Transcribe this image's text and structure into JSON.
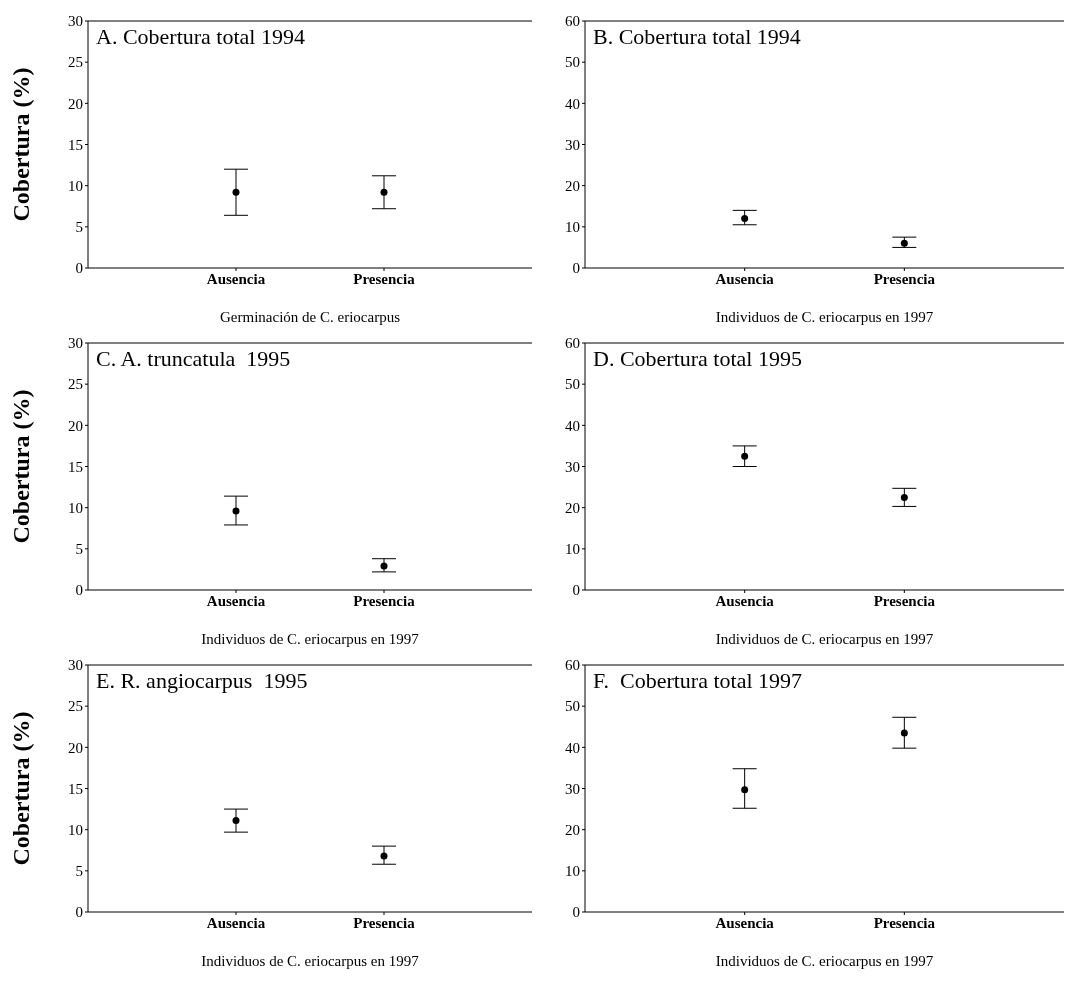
{
  "chart_data": [
    {
      "type": "scatter",
      "title": "A. Cobertura total 1994",
      "xlabel": "Germinación de C. eriocarpus",
      "ylabel": "Cobertura (%)",
      "categories": [
        "Ausencia",
        "Presencia"
      ],
      "values": [
        9.2,
        9.2
      ],
      "errors": [
        [
          6.4,
          12
        ],
        [
          7.2,
          11.2
        ]
      ],
      "color": "#000000",
      "marker": "circle",
      "ylim": [
        0,
        30
      ],
      "yticks": [
        0,
        5,
        10,
        15,
        20,
        25,
        30
      ]
    },
    {
      "type": "scatter",
      "title": "B. Cobertura total 1994",
      "xlabel": "Individuos de C. eriocarpus en 1997",
      "categories": [
        "Ausencia",
        "Presencia"
      ],
      "values": [
        12,
        6
      ],
      "errors": [
        [
          10.5,
          14
        ],
        [
          5,
          7.5
        ]
      ],
      "color": "#000000",
      "marker": "circle",
      "ylim": [
        0,
        60
      ],
      "yticks": [
        0,
        10,
        20,
        30,
        40,
        50,
        60
      ]
    },
    {
      "type": "scatter",
      "title": "C. A. truncatula  1995",
      "xlabel": "Individuos de C. eriocarpus en 1997",
      "ylabel": "Cobertura (%)",
      "categories": [
        "Ausencia",
        "Presencia"
      ],
      "values": [
        9.6,
        2.9
      ],
      "errors": [
        [
          7.9,
          11.4
        ],
        [
          2.2,
          3.8
        ]
      ],
      "color": "#000000",
      "marker": "circle",
      "ylim": [
        0,
        30
      ],
      "yticks": [
        0,
        5,
        10,
        15,
        20,
        25,
        30
      ]
    },
    {
      "type": "scatter",
      "title": "D. Cobertura total 1995",
      "xlabel": "Individuos de C. eriocarpus en 1997",
      "categories": [
        "Ausencia",
        "Presencia"
      ],
      "values": [
        32.5,
        22.5
      ],
      "errors": [
        [
          30,
          35
        ],
        [
          20.3,
          24.7
        ]
      ],
      "color": "#000000",
      "marker": "circle",
      "ylim": [
        0,
        60
      ],
      "yticks": [
        0,
        10,
        20,
        30,
        40,
        50,
        60
      ]
    },
    {
      "type": "scatter",
      "title": "E. R. angiocarpus  1995",
      "xlabel": "Individuos de C. eriocarpus en 1997",
      "ylabel": "Cobertura (%)",
      "categories": [
        "Ausencia",
        "Presencia"
      ],
      "values": [
        11.1,
        6.8
      ],
      "errors": [
        [
          9.7,
          12.5
        ],
        [
          5.8,
          8
        ]
      ],
      "color": "#000000",
      "marker": "circle",
      "ylim": [
        0,
        30
      ],
      "yticks": [
        0,
        5,
        10,
        15,
        20,
        25,
        30
      ]
    },
    {
      "type": "scatter",
      "title": "F.  Cobertura total 1997",
      "xlabel": "Individuos de C. eriocarpus en 1997",
      "categories": [
        "Ausencia",
        "Presencia"
      ],
      "values": [
        29.7,
        43.5
      ],
      "errors": [
        [
          25.2,
          34.8
        ],
        [
          39.8,
          47.3
        ]
      ],
      "color": "#000000",
      "marker": "circle",
      "ylim": [
        0,
        60
      ],
      "yticks": [
        0,
        10,
        20,
        30,
        40,
        50,
        60
      ]
    }
  ]
}
